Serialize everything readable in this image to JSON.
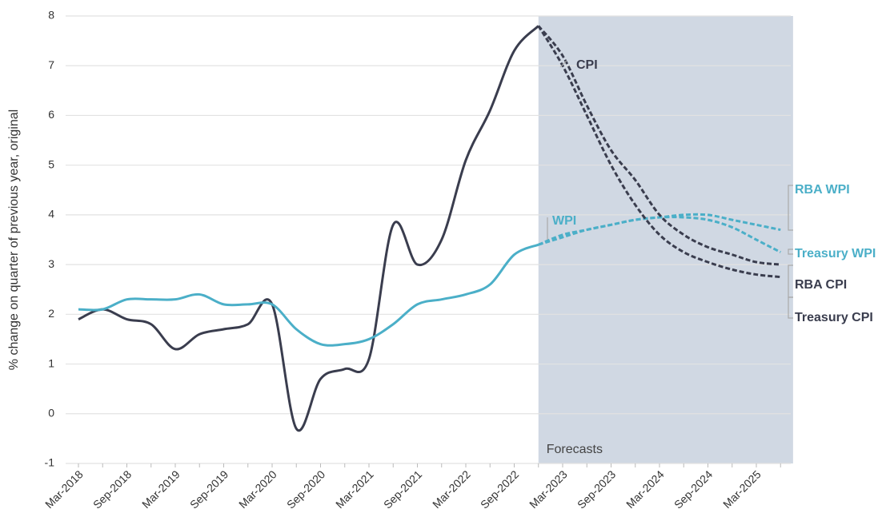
{
  "chart_data": {
    "type": "line",
    "y_label": "% change on quarter of previous year, original",
    "annotation": "Forecasts",
    "forecast_shading_color": "#d0d8e3",
    "forecast_start": 19,
    "categories": [
      "Mar-2018",
      null,
      "Sep-2018",
      null,
      "Mar-2019",
      null,
      "Sep-2019",
      null,
      "Mar-2020",
      null,
      "Sep-2020",
      null,
      "Mar-2021",
      null,
      "Sep-2021",
      null,
      "Mar-2022",
      null,
      "Sep-2022",
      null,
      "Mar-2023",
      null,
      "Sep-2023",
      null,
      "Mar-2024",
      null,
      "Sep-2024",
      null,
      "Mar-2025",
      null
    ],
    "ylim": [
      -1,
      8
    ],
    "yticks": [
      -1,
      0,
      1,
      2,
      3,
      4,
      5,
      6,
      7,
      8
    ],
    "grid": true,
    "series": [
      {
        "name": "CPI",
        "color": "#3a3d4e",
        "dashed": false,
        "values": [
          1.9,
          2.1,
          1.9,
          1.8,
          1.3,
          1.6,
          1.7,
          1.8,
          2.2,
          -0.3,
          0.7,
          0.9,
          1.1,
          3.8,
          3.0,
          3.5,
          5.1,
          6.1,
          7.3,
          7.8,
          null,
          null,
          null,
          null,
          null,
          null,
          null,
          null,
          null,
          null
        ]
      },
      {
        "name": "WPI",
        "color": "#4bafc8",
        "dashed": false,
        "values": [
          2.1,
          2.1,
          2.3,
          2.3,
          2.3,
          2.4,
          2.2,
          2.2,
          2.2,
          1.7,
          1.4,
          1.4,
          1.5,
          1.8,
          2.2,
          2.3,
          2.4,
          2.6,
          3.2,
          3.4,
          null,
          null,
          null,
          null,
          null,
          null,
          null,
          null,
          null,
          null
        ]
      },
      {
        "name": "RBA WPI",
        "color": "#4bafc8",
        "dashed": true,
        "values": [
          null,
          null,
          null,
          null,
          null,
          null,
          null,
          null,
          null,
          null,
          null,
          null,
          null,
          null,
          null,
          null,
          null,
          null,
          null,
          3.4,
          3.6,
          3.7,
          3.8,
          3.9,
          3.95,
          4.0,
          4.0,
          3.9,
          3.8,
          3.7
        ]
      },
      {
        "name": "Treasury WPI",
        "color": "#4bafc8",
        "dashed": true,
        "values": [
          null,
          null,
          null,
          null,
          null,
          null,
          null,
          null,
          null,
          null,
          null,
          null,
          null,
          null,
          null,
          null,
          null,
          null,
          null,
          3.4,
          3.55,
          3.7,
          3.8,
          3.9,
          3.95,
          3.95,
          3.9,
          3.75,
          3.5,
          3.25
        ]
      },
      {
        "name": "RBA CPI",
        "color": "#3a3d4e",
        "dashed": true,
        "values": [
          null,
          null,
          null,
          null,
          null,
          null,
          null,
          null,
          null,
          null,
          null,
          null,
          null,
          null,
          null,
          null,
          null,
          null,
          null,
          7.8,
          7.2,
          6.2,
          5.3,
          4.7,
          4.0,
          3.6,
          3.35,
          3.2,
          3.05,
          3.0
        ]
      },
      {
        "name": "Treasury CPI",
        "color": "#3a3d4e",
        "dashed": true,
        "values": [
          null,
          null,
          null,
          null,
          null,
          null,
          null,
          null,
          null,
          null,
          null,
          null,
          null,
          null,
          null,
          null,
          null,
          null,
          null,
          7.8,
          7.0,
          6.0,
          5.0,
          4.2,
          3.6,
          3.25,
          3.05,
          2.9,
          2.8,
          2.75
        ]
      }
    ]
  }
}
